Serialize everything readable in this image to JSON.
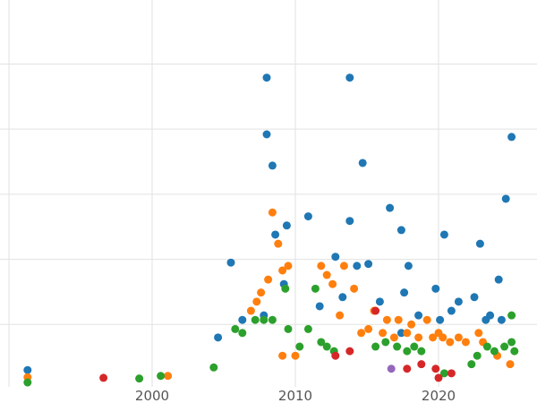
{
  "chart_data": {
    "type": "scatter",
    "title": "",
    "xlabel": "",
    "ylabel": "",
    "grid": true,
    "legend": "none",
    "xlim": [
      1989.375,
      2026.875
    ],
    "ylim": [
      -0.206,
      5.983
    ],
    "x_tick_labels": [
      "2000",
      "2010",
      "2020"
    ],
    "x_tick_values": [
      2000,
      2010,
      2020
    ],
    "x_gridlines": [
      1990,
      2000,
      2010,
      2020
    ],
    "y_gridlines": [
      1,
      2,
      3,
      4,
      5
    ],
    "grid_color": "#e2e2e2",
    "tick_label_color": "#555555",
    "point_radius": 4.5,
    "series": [
      {
        "name": "series-blue",
        "color": "#1f77b4",
        "points": [
          [
            1991.3,
            0.3
          ],
          [
            2004.6,
            0.8
          ],
          [
            2005.5,
            1.95
          ],
          [
            2006.3,
            1.07
          ],
          [
            2007.8,
            1.14
          ],
          [
            2008.0,
            4.79
          ],
          [
            2008.0,
            3.92
          ],
          [
            2008.4,
            3.44
          ],
          [
            2008.6,
            2.38
          ],
          [
            2009.2,
            1.62
          ],
          [
            2009.4,
            2.52
          ],
          [
            2010.9,
            2.66
          ],
          [
            2011.7,
            1.28
          ],
          [
            2012.8,
            2.04
          ],
          [
            2013.3,
            1.42
          ],
          [
            2013.8,
            4.79
          ],
          [
            2013.8,
            2.59
          ],
          [
            2014.3,
            1.9
          ],
          [
            2014.7,
            3.48
          ],
          [
            2015.1,
            1.93
          ],
          [
            2015.9,
            1.35
          ],
          [
            2016.6,
            2.79
          ],
          [
            2017.4,
            2.45
          ],
          [
            2017.4,
            0.87
          ],
          [
            2017.6,
            1.49
          ],
          [
            2017.9,
            1.9
          ],
          [
            2018.6,
            1.14
          ],
          [
            2019.8,
            1.55
          ],
          [
            2020.1,
            1.07
          ],
          [
            2020.4,
            2.38
          ],
          [
            2020.9,
            1.21
          ],
          [
            2021.4,
            1.35
          ],
          [
            2022.5,
            1.42
          ],
          [
            2022.9,
            2.24
          ],
          [
            2023.3,
            1.07
          ],
          [
            2023.6,
            1.14
          ],
          [
            2024.2,
            1.69
          ],
          [
            2024.4,
            1.07
          ],
          [
            2024.7,
            2.93
          ],
          [
            2025.1,
            3.88
          ]
        ]
      },
      {
        "name": "series-orange",
        "color": "#ff7f0e",
        "points": [
          [
            1991.3,
            0.19
          ],
          [
            2001.1,
            0.21
          ],
          [
            2006.9,
            1.21
          ],
          [
            2007.3,
            1.35
          ],
          [
            2007.6,
            1.49
          ],
          [
            2008.1,
            1.69
          ],
          [
            2008.4,
            2.72
          ],
          [
            2008.8,
            2.24
          ],
          [
            2009.1,
            1.83
          ],
          [
            2009.1,
            0.52
          ],
          [
            2009.5,
            1.9
          ],
          [
            2010.0,
            0.52
          ],
          [
            2011.8,
            1.9
          ],
          [
            2012.2,
            1.76
          ],
          [
            2012.6,
            1.62
          ],
          [
            2013.1,
            1.14
          ],
          [
            2013.4,
            1.9
          ],
          [
            2014.1,
            1.55
          ],
          [
            2014.6,
            0.87
          ],
          [
            2015.1,
            0.93
          ],
          [
            2015.5,
            1.21
          ],
          [
            2016.1,
            0.87
          ],
          [
            2016.4,
            1.07
          ],
          [
            2016.9,
            0.8
          ],
          [
            2017.2,
            1.07
          ],
          [
            2017.8,
            0.87
          ],
          [
            2018.1,
            1.0
          ],
          [
            2018.6,
            0.8
          ],
          [
            2019.2,
            1.07
          ],
          [
            2019.6,
            0.8
          ],
          [
            2020.0,
            0.87
          ],
          [
            2020.3,
            0.8
          ],
          [
            2020.8,
            0.73
          ],
          [
            2021.4,
            0.8
          ],
          [
            2021.9,
            0.73
          ],
          [
            2022.8,
            0.87
          ],
          [
            2023.1,
            0.73
          ],
          [
            2024.1,
            0.52
          ],
          [
            2025.0,
            0.39
          ]
        ]
      },
      {
        "name": "series-green",
        "color": "#2ca02c",
        "points": [
          [
            1991.3,
            0.11
          ],
          [
            1999.1,
            0.17
          ],
          [
            2000.6,
            0.21
          ],
          [
            2004.3,
            0.34
          ],
          [
            2005.8,
            0.93
          ],
          [
            2006.3,
            0.87
          ],
          [
            2007.2,
            1.07
          ],
          [
            2007.8,
            1.07
          ],
          [
            2008.4,
            1.07
          ],
          [
            2009.3,
            1.55
          ],
          [
            2009.5,
            0.93
          ],
          [
            2010.3,
            0.66
          ],
          [
            2010.9,
            0.93
          ],
          [
            2011.4,
            1.55
          ],
          [
            2011.8,
            0.73
          ],
          [
            2012.2,
            0.66
          ],
          [
            2012.7,
            0.59
          ],
          [
            2015.6,
            0.66
          ],
          [
            2016.3,
            0.73
          ],
          [
            2017.1,
            0.66
          ],
          [
            2017.8,
            0.59
          ],
          [
            2018.3,
            0.66
          ],
          [
            2018.8,
            0.59
          ],
          [
            2020.4,
            0.25
          ],
          [
            2022.3,
            0.39
          ],
          [
            2022.7,
            0.52
          ],
          [
            2023.4,
            0.66
          ],
          [
            2023.9,
            0.59
          ],
          [
            2024.6,
            0.66
          ],
          [
            2025.1,
            1.14
          ],
          [
            2025.1,
            0.73
          ],
          [
            2025.3,
            0.59
          ]
        ]
      },
      {
        "name": "series-red",
        "color": "#d62728",
        "points": [
          [
            1996.6,
            0.18
          ],
          [
            2012.8,
            0.52
          ],
          [
            2013.8,
            0.59
          ],
          [
            2015.6,
            1.21
          ],
          [
            2017.8,
            0.32
          ],
          [
            2018.8,
            0.39
          ],
          [
            2019.8,
            0.32
          ],
          [
            2020.0,
            0.18
          ],
          [
            2020.9,
            0.25
          ]
        ]
      },
      {
        "name": "series-purple",
        "color": "#9467bd",
        "points": [
          [
            2016.7,
            0.32
          ]
        ]
      }
    ]
  }
}
